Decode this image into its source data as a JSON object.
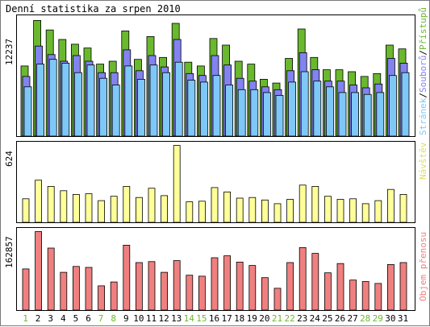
{
  "title": "Denní statistika za srpen 2010",
  "colors": {
    "pristupu": "#6ab82e",
    "souboru": "#8282f0",
    "stranek": "#7ec8f8",
    "navstev": "#ffff99",
    "objem": "#f08080",
    "weekday_label": "#000000",
    "weekend_label": "#6ab82e"
  },
  "panels": {
    "top": {
      "ymax_label": "12237",
      "right_label_parts": [
        {
          "text": "Stránek",
          "color": "#7ec8f8"
        },
        {
          "text": "/",
          "color": "#000000"
        },
        {
          "text": "Souborů",
          "color": "#8282f0"
        },
        {
          "text": "/",
          "color": "#000000"
        },
        {
          "text": "Přístupů",
          "color": "#6ab82e"
        }
      ]
    },
    "middle": {
      "ymax_label": "624",
      "right_label": "Návštěv"
    },
    "bottom": {
      "ymax_label": "162857",
      "right_label": "Objem přenosu"
    }
  },
  "chart_data": {
    "type": "bar",
    "title": "Denní statistika za srpen 2010",
    "categories": [
      "1",
      "2",
      "3",
      "4",
      "5",
      "6",
      "7",
      "8",
      "9",
      "10",
      "11",
      "12",
      "13",
      "14",
      "15",
      "16",
      "17",
      "18",
      "19",
      "20",
      "21",
      "22",
      "23",
      "24",
      "25",
      "26",
      "27",
      "28",
      "29",
      "30",
      "31"
    ],
    "weekend_days": [
      "1",
      "7",
      "8",
      "14",
      "15",
      "21",
      "22",
      "28",
      "29"
    ],
    "series": [
      {
        "name": "Přístupů",
        "panel": "top",
        "ylim": [
          0,
          12237
        ],
        "values": [
          7400,
          12200,
          11200,
          10200,
          9700,
          9300,
          7600,
          7900,
          11100,
          8100,
          10500,
          8300,
          11900,
          7800,
          7400,
          10300,
          9600,
          7900,
          7600,
          6000,
          5600,
          8200,
          11300,
          8300,
          7000,
          7000,
          6800,
          6300,
          6600,
          9600,
          9200
        ]
      },
      {
        "name": "Souborů",
        "panel": "top",
        "ylim": [
          0,
          12237
        ],
        "values": [
          6300,
          9500,
          8600,
          7900,
          8500,
          7900,
          6700,
          6700,
          9100,
          6900,
          8500,
          7300,
          10200,
          6600,
          6400,
          8500,
          7500,
          6100,
          5800,
          5200,
          4900,
          6900,
          8800,
          7000,
          5800,
          5800,
          5400,
          5100,
          5500,
          8200,
          7700
        ]
      },
      {
        "name": "Stránek",
        "panel": "top",
        "ylim": [
          0,
          12237
        ],
        "values": [
          5200,
          7600,
          8100,
          7700,
          6700,
          7500,
          6100,
          5400,
          7400,
          6000,
          7500,
          6700,
          7800,
          5900,
          5700,
          6400,
          5400,
          4900,
          4900,
          4600,
          4300,
          5700,
          6800,
          5800,
          5200,
          4600,
          4600,
          4400,
          4600,
          6400,
          6700
        ]
      },
      {
        "name": "Návštěv",
        "panel": "middle",
        "ylim": [
          0,
          624
        ],
        "values": [
          190,
          340,
          290,
          255,
          225,
          230,
          175,
          210,
          290,
          200,
          275,
          215,
          620,
          165,
          170,
          280,
          245,
          195,
          200,
          180,
          150,
          185,
          300,
          290,
          210,
          185,
          190,
          150,
          175,
          265,
          225
        ]
      },
      {
        "name": "Objem přenosu",
        "panel": "bottom",
        "ylim": [
          0,
          162857
        ],
        "values": [
          85000,
          162000,
          128000,
          78000,
          90000,
          88000,
          50000,
          58000,
          134000,
          98000,
          100000,
          78000,
          102000,
          72000,
          70000,
          108000,
          112000,
          99000,
          92000,
          67000,
          45000,
          98000,
          129000,
          117000,
          77000,
          96000,
          62000,
          59000,
          55000,
          94000,
          98000
        ]
      }
    ]
  }
}
